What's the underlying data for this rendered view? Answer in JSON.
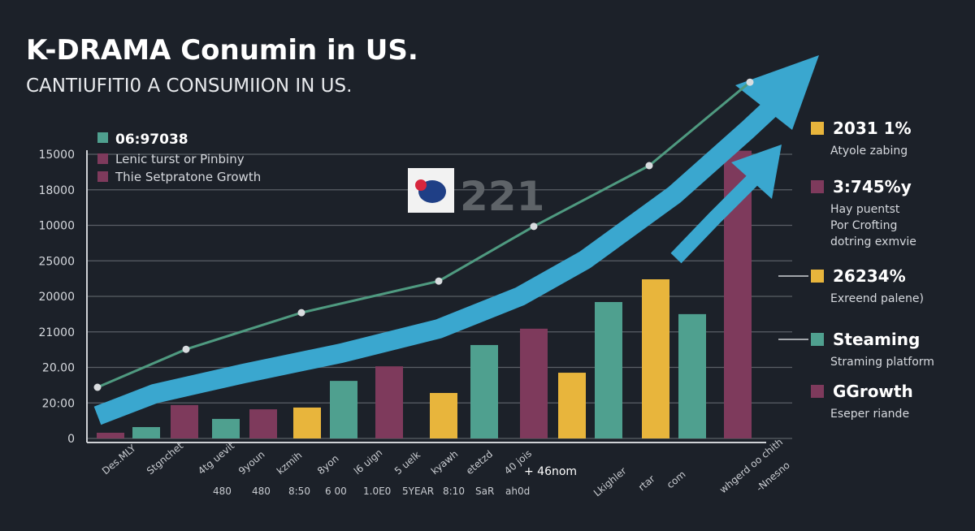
{
  "title": "K-DRAMA Conumin in US.",
  "subtitle": "CANTIUFITI0 A CONSUMIION IN US.",
  "colors": {
    "background": "#1c2129",
    "teal": "#4fa08f",
    "magenta": "#7e3a5c",
    "yellow": "#e8b53c",
    "arrow": "#3aa7cf",
    "line": "#4f9a80"
  },
  "badge": {
    "icon": "korea-map-logo",
    "text": "221"
  },
  "legend": [
    {
      "label": "06:97038",
      "color": "#4fa08f"
    },
    {
      "label": "Lenic turst or Pinbiny",
      "color": "#7e3a5c"
    },
    {
      "label": "Thie Setpratone Growth",
      "color": "#7e3a5c"
    }
  ],
  "right_legend": [
    {
      "value": "2031 1%",
      "desc": [
        "Atyole zabing"
      ],
      "color": "#e8b53c",
      "value_color": "#ffffff"
    },
    {
      "value": "3:745%y",
      "desc": [
        "Hay puentst",
        "Por Crofting",
        "dotring exmvie"
      ],
      "color": "#7e3a5c",
      "value_color": "#e8b53c"
    },
    {
      "value": "26234%",
      "desc": [
        "Exreend palene)"
      ],
      "color": "#e8b53c",
      "value_color": "#ffffff"
    },
    {
      "value": "Steaming",
      "desc": [
        "Straming platform"
      ],
      "color": "#4fa08f",
      "value_color": "#ffffff"
    },
    {
      "value": "GGrowth",
      "desc": [
        "Eseper riande"
      ],
      "color": "#7e3a5c",
      "value_color": "#ffffff"
    }
  ],
  "chart_data": {
    "type": "bar",
    "title": "K-DRAMA Conumin in US.",
    "subtitle": "CANTIUFITI0 A CONSUMIION IN US.",
    "y_tick_labels": [
      "0",
      "20:00",
      "20.00",
      "21000",
      "20000",
      "25000",
      "10000",
      "18000",
      "15000"
    ],
    "ylim": [
      0,
      8
    ],
    "grid": true,
    "legend_position": "top-left",
    "x_tick_labels_rotated": [
      "Des.MLY",
      "Stgnchet",
      "4tg uevit",
      "9youn",
      "kzmih",
      "8yon",
      "l6 uign",
      "5 uelk",
      "kyawh",
      "etetzd",
      "40 jois"
    ],
    "x_tick_labels_row2": [
      "480",
      "480",
      "8:50",
      "6 00",
      "1.0E0",
      "5YEAR",
      "8:10",
      "SaR",
      "ah0d"
    ],
    "x_tick_center": "+ 46nom",
    "x_tick_labels_right": [
      "Lkighler",
      "rtar",
      "com",
      "whgerd oo chith",
      "-Nnesno"
    ],
    "bars": [
      {
        "value": 0.16,
        "color": "magenta"
      },
      {
        "value": 0.32,
        "color": "teal"
      },
      {
        "value": 0.94,
        "color": "magenta"
      },
      {
        "value": 0.55,
        "color": "teal"
      },
      {
        "value": 0.82,
        "color": "magenta"
      },
      {
        "value": 0.87,
        "color": "yellow"
      },
      {
        "value": 1.62,
        "color": "teal"
      },
      {
        "value": 2.03,
        "color": "magenta"
      },
      {
        "value": 1.28,
        "color": "yellow"
      },
      {
        "value": 2.63,
        "color": "teal"
      },
      {
        "value": 3.09,
        "color": "magenta"
      },
      {
        "value": 1.85,
        "color": "yellow"
      },
      {
        "value": 3.84,
        "color": "teal"
      },
      {
        "value": 4.48,
        "color": "yellow"
      },
      {
        "value": 3.5,
        "color": "teal"
      },
      {
        "value": 8.1,
        "color": "magenta"
      }
    ],
    "line_series": {
      "values": [
        1.44,
        2.51,
        3.54,
        4.43,
        5.97,
        7.68,
        10.03
      ]
    },
    "trend_arrows": 2
  }
}
